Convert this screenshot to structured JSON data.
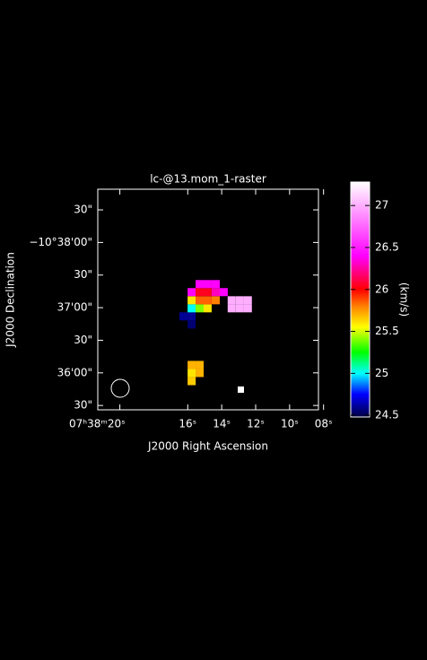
{
  "chart_data": {
    "type": "raster",
    "title": "lc-@13.mom_1-raster",
    "x_label": "J2000 Right Ascension",
    "y_label": "J2000 Declination",
    "colorbar_label": "(km/s)",
    "xlim": [
      21.3,
      8.3
    ],
    "ylim": [
      229,
      26
    ],
    "xticks": [
      {
        "value": 20,
        "label": "07ʰ38ᵐ20ˢ"
      },
      {
        "value": 16,
        "label": "16ˢ"
      },
      {
        "value": 14,
        "label": "14ˢ"
      },
      {
        "value": 12,
        "label": "12ˢ"
      },
      {
        "value": 10,
        "label": "10ˢ"
      },
      {
        "value": 8,
        "label": "08ˢ"
      }
    ],
    "yticks": [
      {
        "value": 30,
        "label": "30\""
      },
      {
        "value": 60,
        "label": "36'00\""
      },
      {
        "value": 90,
        "label": "30\""
      },
      {
        "value": 120,
        "label": "37'00\""
      },
      {
        "value": 150,
        "label": "30\""
      },
      {
        "value": 180,
        "label": "−10°38'00\""
      },
      {
        "value": 210,
        "label": "30\""
      }
    ],
    "clim": [
      24.48,
      27.28
    ],
    "cticks": [
      24.5,
      25,
      25.5,
      26,
      26.5,
      27
    ],
    "colormap": [
      {
        "value": 24.48,
        "color": "#000040"
      },
      {
        "value": 24.75,
        "color": "#0000ff"
      },
      {
        "value": 25.0,
        "color": "#00ffff"
      },
      {
        "value": 25.25,
        "color": "#00ff00"
      },
      {
        "value": 25.55,
        "color": "#ffff00"
      },
      {
        "value": 25.8,
        "color": "#ff8000"
      },
      {
        "value": 26.0,
        "color": "#ff0000"
      },
      {
        "value": 26.4,
        "color": "#ff00ff"
      },
      {
        "value": 27.28,
        "color": "#ffffff"
      }
    ],
    "x": [
      15.77,
      15.77,
      15.3,
      15.77,
      15.3,
      15.77,
      16.25,
      15.77,
      15.77,
      15.3,
      14.83,
      13.41,
      12.93,
      12.46,
      15.77,
      15.3,
      14.83,
      14.35,
      13.41,
      12.93,
      12.46,
      15.77,
      15.3,
      14.83,
      14.35,
      13.88,
      15.3,
      14.83,
      14.35
    ],
    "y": [
      52.4,
      59.9,
      59.9,
      67.3,
      67.3,
      104.5,
      112.0,
      112.0,
      119.4,
      119.4,
      119.4,
      119.4,
      119.4,
      119.4,
      126.8,
      126.8,
      126.8,
      126.8,
      126.8,
      126.8,
      126.8,
      134.3,
      134.3,
      134.3,
      134.3,
      134.3,
      141.7,
      141.7,
      141.7
    ],
    "values": [
      25.65,
      25.6,
      25.7,
      25.7,
      25.7,
      24.55,
      24.6,
      24.6,
      25.0,
      25.4,
      25.6,
      27.0,
      27.0,
      27.0,
      25.6,
      25.85,
      25.85,
      25.8,
      27.0,
      27.0,
      27.0,
      26.4,
      26.05,
      26.05,
      26.3,
      26.4,
      26.4,
      26.4,
      26.4
    ]
  }
}
